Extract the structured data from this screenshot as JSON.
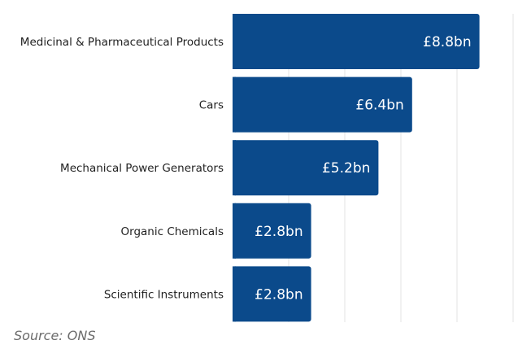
{
  "chart_data": {
    "type": "bar",
    "orientation": "horizontal",
    "categories": [
      "Medicinal & Pharmaceutical Products",
      "Cars",
      "Mechanical Power Generators",
      "Organic Chemicals",
      "Scientific Instruments"
    ],
    "values": [
      8.8,
      6.4,
      5.2,
      2.8,
      2.8
    ],
    "value_labels": [
      "£8.8bn",
      "£6.4bn",
      "£5.2bn",
      "£2.8bn",
      "£2.8bn"
    ],
    "title": "",
    "xlabel": "",
    "ylabel": "",
    "xlim": [
      0,
      10
    ],
    "grid": true,
    "bar_color": "#0b4a8b",
    "grid_color": "#e3e3e3"
  },
  "source": "Source: ONS"
}
